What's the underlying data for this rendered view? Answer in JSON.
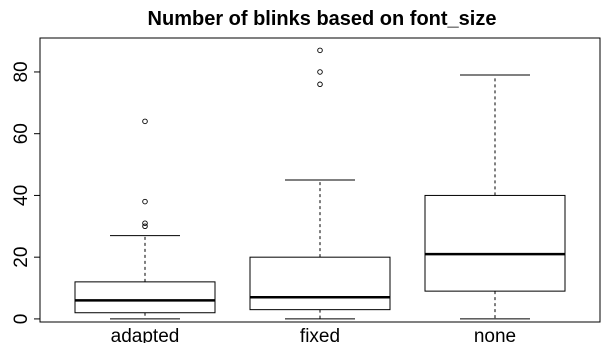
{
  "chart_data": {
    "type": "boxplot",
    "title": "Number of blinks based on font_size",
    "xlabel": "",
    "ylabel": "",
    "categories": [
      "adapted",
      "fixed",
      "none"
    ],
    "ylim": [
      -1,
      91
    ],
    "yticks": [
      0,
      20,
      40,
      60,
      80
    ],
    "grid": false,
    "colors": {
      "stroke": "#000000",
      "fill": "#ffffff",
      "median": "#000000"
    },
    "boxes": [
      {
        "category": "adapted",
        "whisker_low": 0,
        "q1": 2,
        "median": 6,
        "q3": 12,
        "whisker_high": 27,
        "outliers": [
          30,
          31,
          38,
          64
        ]
      },
      {
        "category": "fixed",
        "whisker_low": 0,
        "q1": 3,
        "median": 7,
        "q3": 20,
        "whisker_high": 45,
        "outliers": [
          76,
          80,
          87
        ]
      },
      {
        "category": "none",
        "whisker_low": 0,
        "q1": 9,
        "median": 21,
        "q3": 40,
        "whisker_high": 79,
        "outliers": []
      }
    ]
  }
}
